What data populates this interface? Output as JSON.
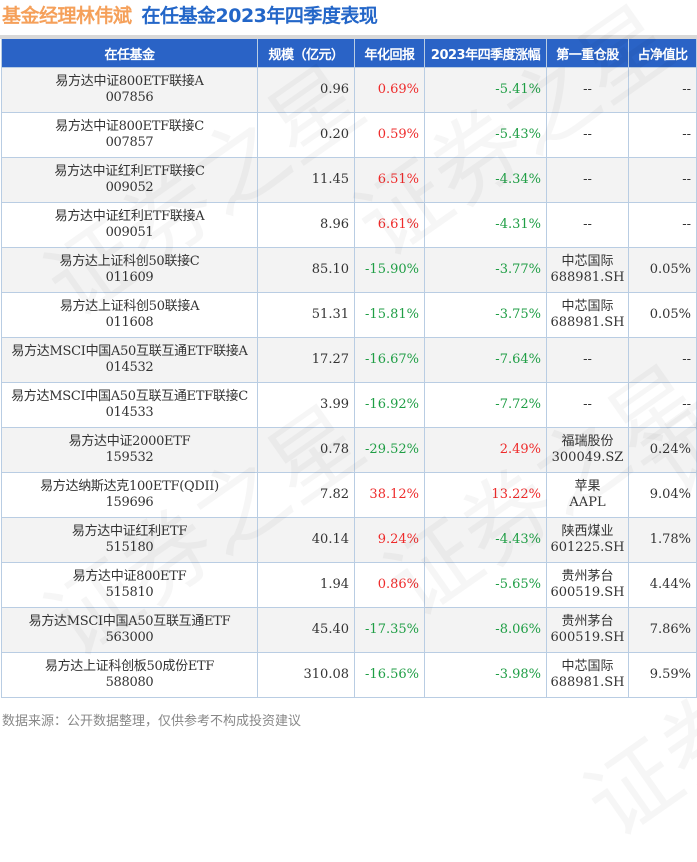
{
  "title": {
    "manager": "基金经理林伟斌",
    "subtitle": "在任基金2023年四季度表现"
  },
  "table": {
    "headers": [
      "在任基金",
      "规模（亿元）",
      "年化回报",
      "2023年四季度涨幅",
      "第一重仓股",
      "占净值比"
    ],
    "rows": [
      {
        "name": "易方达中证800ETF联接A",
        "code": "007856",
        "size": "0.96",
        "annual": "0.69%",
        "q4": "-5.41%",
        "stock": "--",
        "stock_code": "",
        "ratio": "--"
      },
      {
        "name": "易方达中证800ETF联接C",
        "code": "007857",
        "size": "0.20",
        "annual": "0.59%",
        "q4": "-5.43%",
        "stock": "--",
        "stock_code": "",
        "ratio": "--"
      },
      {
        "name": "易方达中证红利ETF联接C",
        "code": "009052",
        "size": "11.45",
        "annual": "6.51%",
        "q4": "-4.34%",
        "stock": "--",
        "stock_code": "",
        "ratio": "--"
      },
      {
        "name": "易方达中证红利ETF联接A",
        "code": "009051",
        "size": "8.96",
        "annual": "6.61%",
        "q4": "-4.31%",
        "stock": "--",
        "stock_code": "",
        "ratio": "--"
      },
      {
        "name": "易方达上证科创50联接C",
        "code": "011609",
        "size": "85.10",
        "annual": "-15.90%",
        "q4": "-3.77%",
        "stock": "中芯国际",
        "stock_code": "688981.SH",
        "ratio": "0.05%"
      },
      {
        "name": "易方达上证科创50联接A",
        "code": "011608",
        "size": "51.31",
        "annual": "-15.81%",
        "q4": "-3.75%",
        "stock": "中芯国际",
        "stock_code": "688981.SH",
        "ratio": "0.05%"
      },
      {
        "name": "易方达MSCI中国A50互联互通ETF联接A",
        "code": "014532",
        "size": "17.27",
        "annual": "-16.67%",
        "q4": "-7.64%",
        "stock": "--",
        "stock_code": "",
        "ratio": "--"
      },
      {
        "name": "易方达MSCI中国A50互联互通ETF联接C",
        "code": "014533",
        "size": "3.99",
        "annual": "-16.92%",
        "q4": "-7.72%",
        "stock": "--",
        "stock_code": "",
        "ratio": "--"
      },
      {
        "name": "易方达中证2000ETF",
        "code": "159532",
        "size": "0.78",
        "annual": "-29.52%",
        "q4": "2.49%",
        "stock": "福瑞股份",
        "stock_code": "300049.SZ",
        "ratio": "0.24%"
      },
      {
        "name": "易方达纳斯达克100ETF(QDII)",
        "code": "159696",
        "size": "7.82",
        "annual": "38.12%",
        "q4": "13.22%",
        "stock": "苹果",
        "stock_code": "AAPL",
        "ratio": "9.04%"
      },
      {
        "name": "易方达中证红利ETF",
        "code": "515180",
        "size": "40.14",
        "annual": "9.24%",
        "q4": "-4.43%",
        "stock": "陕西煤业",
        "stock_code": "601225.SH",
        "ratio": "1.78%"
      },
      {
        "name": "易方达中证800ETF",
        "code": "515810",
        "size": "1.94",
        "annual": "0.86%",
        "q4": "-5.65%",
        "stock": "贵州茅台",
        "stock_code": "600519.SH",
        "ratio": "4.44%"
      },
      {
        "name": "易方达MSCI中国A50互联互通ETF",
        "code": "563000",
        "size": "45.40",
        "annual": "-17.35%",
        "q4": "-8.06%",
        "stock": "贵州茅台",
        "stock_code": "600519.SH",
        "ratio": "7.86%"
      },
      {
        "name": "易方达上证科创板50成份ETF",
        "code": "588080",
        "size": "310.08",
        "annual": "-16.56%",
        "q4": "-3.98%",
        "stock": "中芯国际",
        "stock_code": "688981.SH",
        "ratio": "9.59%"
      }
    ]
  },
  "footer": "数据来源：公开数据整理，仅供参考不构成投资建议",
  "watermark": "证券之星",
  "colors": {
    "header_bg": "#2a63c6",
    "positive": "#ee2b2b",
    "negative": "#1f9e45",
    "title_orange": "#f5a05a",
    "title_blue": "#2366c8"
  }
}
